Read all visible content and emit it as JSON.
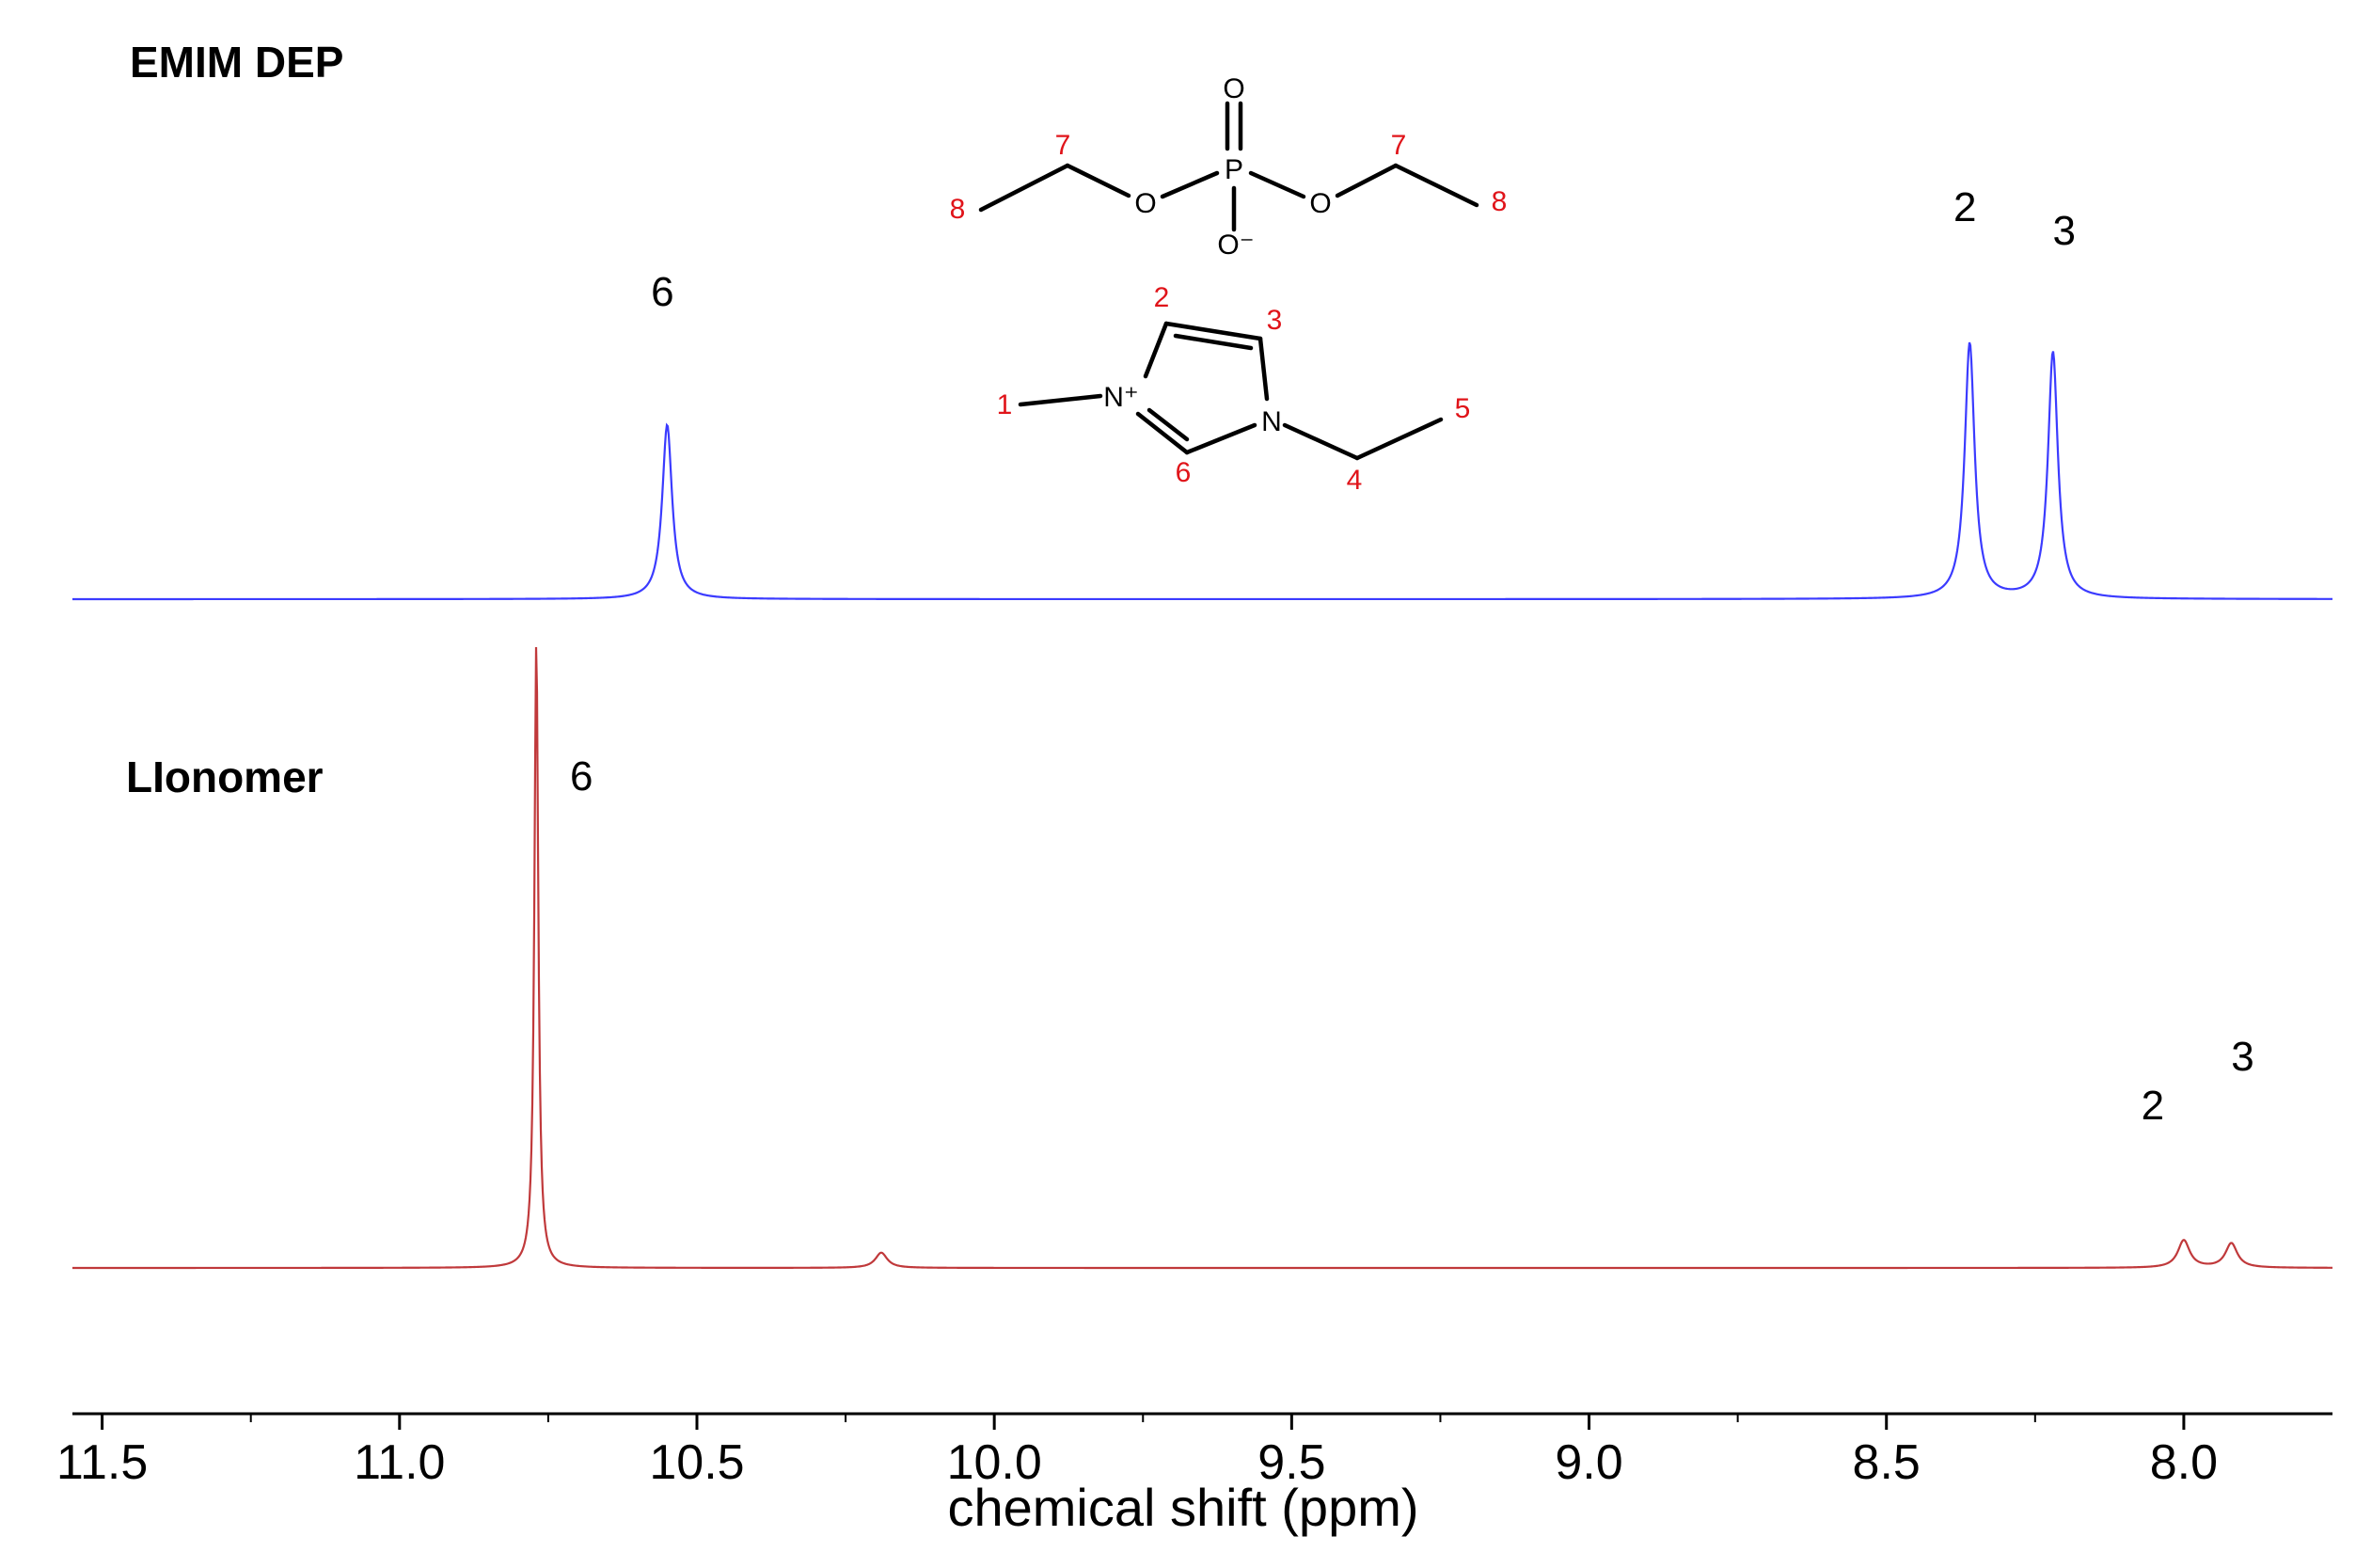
{
  "chart_data": {
    "type": "line",
    "xlabel": "chemical shift (ppm)",
    "xlim": [
      11.55,
      7.75
    ],
    "x_reversed": true,
    "x_ticks": [
      "11.5",
      "11.0",
      "10.5",
      "10.0",
      "9.5",
      "9.0",
      "8.5",
      "8.0"
    ],
    "grid": false,
    "series": [
      {
        "name": "EMIM DEP",
        "color": "#3b3bff",
        "peaks": [
          {
            "ppm": 10.55,
            "height": 0.58,
            "label": "6"
          },
          {
            "ppm": 8.36,
            "height": 0.85,
            "label": "2"
          },
          {
            "ppm": 8.22,
            "height": 0.82,
            "label": "3"
          }
        ]
      },
      {
        "name": "LIonomer",
        "color": "#c0393b",
        "peaks": [
          {
            "ppm": 10.77,
            "height": 2.05,
            "label": "6"
          },
          {
            "ppm": 10.19,
            "height": 0.05,
            "label": ""
          },
          {
            "ppm": 8.0,
            "height": 0.09,
            "label": "2"
          },
          {
            "ppm": 7.92,
            "height": 0.08,
            "label": "3"
          }
        ]
      }
    ]
  },
  "structure": {
    "anion_atoms": {
      "phosphorus": "P",
      "oxygen": "O",
      "oxygen_minus": "O⁻"
    },
    "cation_atoms": {
      "n_plus": "N⁺",
      "n": "N"
    },
    "numbers": [
      "1",
      "2",
      "3",
      "4",
      "5",
      "6",
      "7",
      "8"
    ]
  }
}
